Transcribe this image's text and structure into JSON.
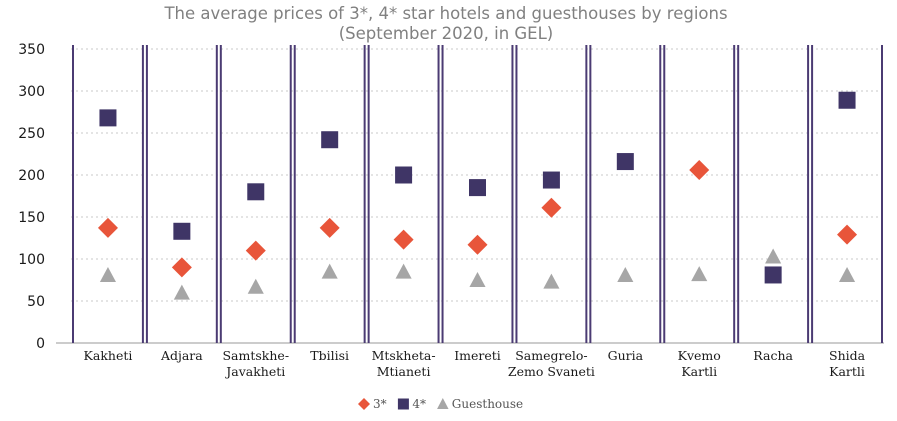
{
  "chart_data": {
    "type": "scatter",
    "title": "The average prices of 3*, 4* star hotels and guesthouses by regions",
    "subtitle": "(September 2020, in GEL)",
    "categories": [
      [
        "Kakheti"
      ],
      [
        "Adjara"
      ],
      [
        "Samtskhe-",
        "Javakheti"
      ],
      [
        "Tbilisi"
      ],
      [
        "Mtskheta-",
        "Mtianeti"
      ],
      [
        "Imereti"
      ],
      [
        "Samegrelo-",
        "Zemo Svaneti"
      ],
      [
        "Guria"
      ],
      [
        "Kvemo",
        "Kartli"
      ],
      [
        "Racha"
      ],
      [
        "Shida",
        "Kartli"
      ]
    ],
    "ylim": [
      0,
      350
    ],
    "yticks": [
      0,
      50,
      100,
      150,
      200,
      250,
      300,
      350
    ],
    "grid": true,
    "legend_position": "bottom",
    "series": [
      {
        "name": "3*",
        "marker": "diamond",
        "color": "#e8553a",
        "values": [
          137,
          90,
          110,
          137,
          123,
          117,
          161,
          null,
          206,
          null,
          129
        ]
      },
      {
        "name": "4*",
        "marker": "square",
        "color": "#3f3566",
        "values": [
          268,
          133,
          180,
          242,
          200,
          185,
          194,
          216,
          null,
          81,
          289
        ]
      },
      {
        "name": "Guesthouse",
        "marker": "triangle",
        "color": "#a6a6a6",
        "values": [
          81,
          60,
          67,
          85,
          85,
          75,
          73,
          81,
          82,
          103,
          81
        ]
      }
    ],
    "separator_color": "#4b3b73",
    "grid_color": "#c8c8c8"
  }
}
